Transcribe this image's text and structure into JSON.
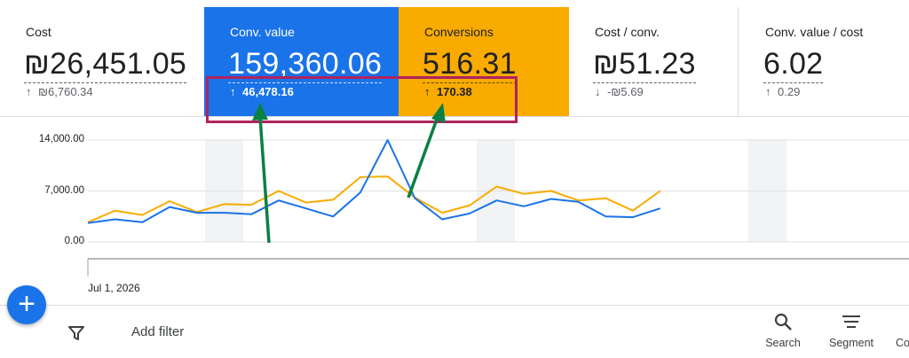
{
  "scorecards": [
    {
      "id": "cost",
      "label": "Cost",
      "value": "₪26,451.05",
      "delta_arrow": "↑",
      "delta": "₪6,760.34"
    },
    {
      "id": "convvalue",
      "label": "Conv. value",
      "value": "159,360.06",
      "delta_arrow": "↑",
      "delta": "46,478.16"
    },
    {
      "id": "conversions",
      "label": "Conversions",
      "value": "516.31",
      "delta_arrow": "↑",
      "delta": "170.38"
    },
    {
      "id": "costconv",
      "label": "Cost / conv.",
      "value": "₪51.23",
      "delta_arrow": "↓",
      "delta": "-₪5.69"
    },
    {
      "id": "roas",
      "label": "Conv. value / cost",
      "value": "6.02",
      "delta_arrow": "↑",
      "delta": "0.29"
    }
  ],
  "colors": {
    "conv_value": "#1a73e8",
    "conversions": "#f9ab00",
    "highlight": "#b0235f",
    "annotation_arrow": "#0b8043"
  },
  "chart_data": {
    "type": "line",
    "x_start_label": "Jul 1, 2026",
    "y_ticks": [
      "14,000.00",
      "7,000.00",
      "0.00"
    ],
    "ylim": [
      0,
      14000
    ],
    "series": [
      {
        "name": "Conv. value",
        "color": "#1a73e8",
        "values": [
          2600,
          3100,
          2700,
          4800,
          4000,
          4000,
          3800,
          5700,
          4600,
          3500,
          6800,
          14000,
          6000,
          3100,
          3900,
          5700,
          4900,
          5900,
          5500,
          3500,
          3400,
          4600
        ]
      },
      {
        "name": "Conversions",
        "color": "#f9ab00",
        "values": [
          2700,
          4300,
          3700,
          5600,
          4100,
          5200,
          5100,
          7000,
          5400,
          5800,
          8900,
          9000,
          6100,
          4000,
          5000,
          7600,
          6600,
          7000,
          5700,
          6000,
          4300,
          7000
        ]
      }
    ],
    "weekend_bands": [
      6,
      24,
      56,
      83
    ]
  },
  "toolbar": {
    "add_filter": "Add filter",
    "search": "Search",
    "segment": "Segment",
    "columns": "Co"
  },
  "icons": {
    "fab": "plus-icon",
    "filter": "filter-icon",
    "search": "search-icon",
    "segment": "segment-icon"
  }
}
